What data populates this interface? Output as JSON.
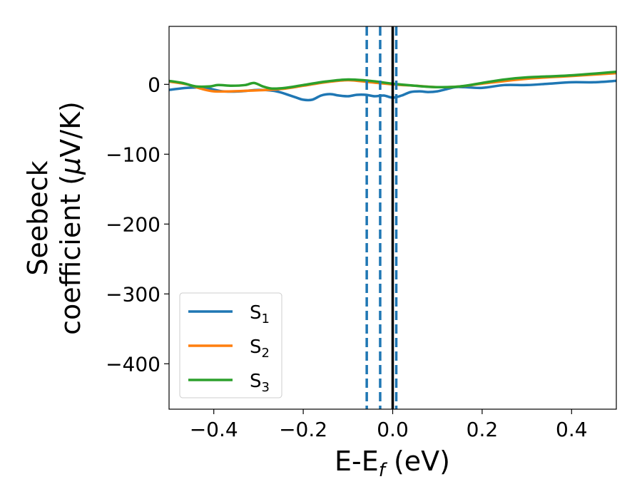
{
  "chart_data": {
    "type": "line",
    "xlabel_main": "E-E",
    "xlabel_sub": "f",
    "xlabel_unit": " (eV)",
    "ylabel_line1": "Seebeck",
    "ylabel_line2_pre": "coefficient  (",
    "ylabel_mu": "μ",
    "ylabel_line2_post": "V/K)",
    "xlim": [
      -0.5,
      0.5
    ],
    "ylim": [
      -465,
      83
    ],
    "xticks": [
      -0.4,
      -0.2,
      0.0,
      0.2,
      0.4
    ],
    "xtick_labels": [
      "−0.4",
      "−0.2",
      "0.0",
      "0.2",
      "0.4"
    ],
    "yticks": [
      0,
      -100,
      -200,
      -300,
      -400
    ],
    "ytick_labels": [
      "0",
      "−100",
      "−200",
      "−300",
      "−400"
    ],
    "grid": false,
    "legend_placement": "lower-left",
    "vlines": [
      {
        "x": -0.058,
        "style": "dashed",
        "color": "#1f77b4"
      },
      {
        "x": -0.028,
        "style": "dashed",
        "color": "#1f77b4"
      },
      {
        "x": 0.008,
        "style": "dashed",
        "color": "#1f77b4"
      },
      {
        "x": 0.0,
        "style": "solid",
        "color": "#000000"
      }
    ],
    "series": [
      {
        "name": "S",
        "sub": "1",
        "color": "#1f77b4",
        "x": [
          -0.5,
          -0.46,
          -0.42,
          -0.38,
          -0.34,
          -0.3,
          -0.26,
          -0.22,
          -0.2,
          -0.18,
          -0.16,
          -0.14,
          -0.12,
          -0.1,
          -0.08,
          -0.06,
          -0.04,
          -0.02,
          0.0,
          0.02,
          0.04,
          0.06,
          0.08,
          0.1,
          0.12,
          0.14,
          0.16,
          0.2,
          0.25,
          0.3,
          0.35,
          0.4,
          0.45,
          0.5
        ],
        "y": [
          -8,
          -5,
          -5,
          -10,
          -10,
          -8,
          -10,
          -18,
          -22,
          -22,
          -16,
          -14,
          -16,
          -17,
          -15,
          -15,
          -17,
          -16,
          -19,
          -16,
          -11,
          -10,
          -11,
          -10,
          -7,
          -4,
          -4,
          -5,
          -1,
          -1,
          1,
          3,
          3,
          5
        ]
      },
      {
        "name": "S",
        "sub": "2",
        "color": "#ff7f0e",
        "x": [
          -0.5,
          -0.46,
          -0.43,
          -0.4,
          -0.36,
          -0.32,
          -0.28,
          -0.24,
          -0.2,
          -0.15,
          -0.1,
          -0.05,
          0.0,
          0.05,
          0.1,
          0.15,
          0.2,
          0.3,
          0.4,
          0.5
        ],
        "y": [
          4,
          0,
          -6,
          -10,
          -10,
          -9,
          -8,
          -6,
          -2,
          3,
          6,
          3,
          0,
          -2,
          -4,
          -3,
          1,
          8,
          12,
          16
        ]
      },
      {
        "name": "S",
        "sub": "3",
        "color": "#2ca02c",
        "x": [
          -0.5,
          -0.47,
          -0.44,
          -0.41,
          -0.39,
          -0.36,
          -0.33,
          -0.31,
          -0.29,
          -0.27,
          -0.24,
          -0.2,
          -0.15,
          -0.1,
          -0.05,
          0.0,
          0.05,
          0.1,
          0.15,
          0.2,
          0.25,
          0.3,
          0.4,
          0.5
        ],
        "y": [
          5,
          2,
          -3,
          -3,
          -1,
          -2,
          -1,
          2,
          -3,
          -6,
          -5,
          -1,
          4,
          7,
          5,
          1,
          -2,
          -4,
          -3,
          2,
          7,
          10,
          13,
          18
        ]
      }
    ]
  }
}
